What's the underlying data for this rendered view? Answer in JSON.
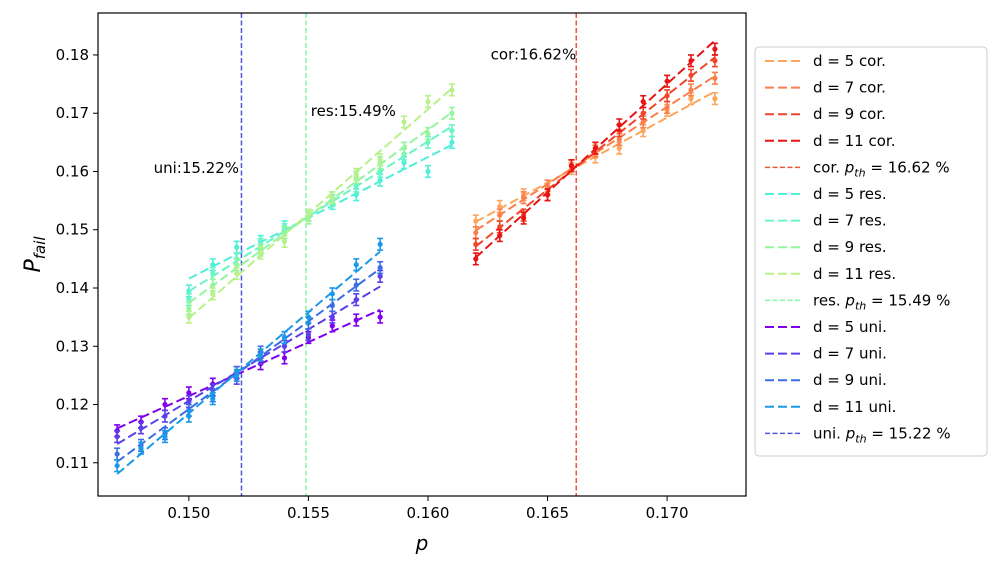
{
  "chart_data": {
    "type": "line",
    "xlabel": "p",
    "ylabel": "P",
    "ylabel_sub": "fail",
    "xlim": [
      0.1462,
      0.1733
    ],
    "ylim": [
      0.1043,
      0.1872
    ],
    "x_ticks": [
      0.15,
      0.155,
      0.16,
      0.165,
      0.17
    ],
    "x_tick_labels": [
      "0.150",
      "0.155",
      "0.160",
      "0.165",
      "0.170"
    ],
    "y_ticks": [
      0.11,
      0.12,
      0.13,
      0.14,
      0.15,
      0.16,
      0.17,
      0.18
    ],
    "y_tick_labels": [
      "0.11",
      "0.12",
      "0.13",
      "0.14",
      "0.15",
      "0.16",
      "0.17",
      "0.18"
    ],
    "grid": false,
    "legend_position": "outside-right",
    "error_bar": 0.001,
    "annotations": [
      {
        "text": "cor:16.62%",
        "x": 0.1662,
        "y": 0.1792,
        "anchor": "end"
      },
      {
        "text": "res:15.49%",
        "x": 0.1551,
        "y": 0.1695,
        "anchor": "start"
      },
      {
        "text": "uni:15.22%",
        "x": 0.1521,
        "y": 0.1597,
        "anchor": "end"
      }
    ],
    "thresholds": [
      {
        "label_prefix": "cor. ",
        "label_suffix": " = 16.62 %",
        "x": 0.1662,
        "color": "#ee5533"
      },
      {
        "label_prefix": "res. ",
        "label_suffix": " = 15.49 %",
        "x": 0.1549,
        "color": "#88f5a8"
      },
      {
        "label_prefix": "uni. ",
        "label_suffix": " = 15.22 %",
        "x": 0.1522,
        "color": "#5059dd"
      }
    ],
    "pth_symbol": "p",
    "pth_subscript": "th",
    "series": [
      {
        "name": "d = 5 cor.",
        "color": "#fca55d",
        "x": [
          0.162,
          0.163,
          0.164,
          0.165,
          0.166,
          0.167,
          0.168,
          0.169,
          0.17,
          0.171,
          0.172
        ],
        "values": [
          0.1515,
          0.154,
          0.156,
          0.157,
          0.1605,
          0.1625,
          0.164,
          0.167,
          0.1705,
          0.1725,
          0.1725
        ]
      },
      {
        "name": "d = 7 cor.",
        "color": "#fb7f4c",
        "x": [
          0.162,
          0.163,
          0.164,
          0.165,
          0.166,
          0.167,
          0.168,
          0.169,
          0.17,
          0.171,
          0.172
        ],
        "values": [
          0.1495,
          0.1525,
          0.1555,
          0.1575,
          0.161,
          0.1635,
          0.1655,
          0.1685,
          0.171,
          0.174,
          0.176
        ]
      },
      {
        "name": "d = 9 cor.",
        "color": "#f0452b",
        "x": [
          0.162,
          0.163,
          0.164,
          0.165,
          0.166,
          0.167,
          0.168,
          0.169,
          0.17,
          0.171,
          0.172
        ],
        "values": [
          0.1475,
          0.1505,
          0.1525,
          0.156,
          0.161,
          0.164,
          0.167,
          0.17,
          0.173,
          0.1765,
          0.179
        ]
      },
      {
        "name": "d = 11 cor.",
        "color": "#e81313",
        "x": [
          0.162,
          0.163,
          0.164,
          0.165,
          0.166,
          0.167,
          0.168,
          0.169,
          0.17,
          0.171,
          0.172
        ],
        "values": [
          0.145,
          0.149,
          0.152,
          0.156,
          0.161,
          0.164,
          0.168,
          0.172,
          0.1755,
          0.179,
          0.181
        ]
      },
      {
        "name": "d = 5 res.",
        "color": "#4ff0d8",
        "x": [
          0.15,
          0.151,
          0.152,
          0.153,
          0.154,
          0.155,
          0.156,
          0.157,
          0.158,
          0.159,
          0.16,
          0.161
        ],
        "values": [
          0.1395,
          0.144,
          0.147,
          0.148,
          0.1505,
          0.1525,
          0.1545,
          0.156,
          0.1585,
          0.1615,
          0.16,
          0.165
        ]
      },
      {
        "name": "d = 7 res.",
        "color": "#6af5c5",
        "x": [
          0.15,
          0.151,
          0.152,
          0.153,
          0.154,
          0.155,
          0.156,
          0.157,
          0.158,
          0.159,
          0.16,
          0.161
        ],
        "values": [
          0.138,
          0.1425,
          0.145,
          0.1475,
          0.15,
          0.1525,
          0.155,
          0.1575,
          0.16,
          0.163,
          0.165,
          0.167
        ]
      },
      {
        "name": "d = 9 res.",
        "color": "#94f59c",
        "x": [
          0.15,
          0.151,
          0.152,
          0.153,
          0.154,
          0.155,
          0.156,
          0.157,
          0.158,
          0.159,
          0.16,
          0.161
        ],
        "values": [
          0.1365,
          0.1405,
          0.144,
          0.1465,
          0.1495,
          0.152,
          0.1555,
          0.159,
          0.1615,
          0.164,
          0.1665,
          0.17
        ]
      },
      {
        "name": "d = 11 res.",
        "color": "#b8f089",
        "x": [
          0.15,
          0.151,
          0.152,
          0.153,
          0.154,
          0.155,
          0.156,
          0.157,
          0.158,
          0.159,
          0.16,
          0.161
        ],
        "values": [
          0.135,
          0.139,
          0.1425,
          0.146,
          0.148,
          0.1525,
          0.1555,
          0.1595,
          0.162,
          0.1685,
          0.172,
          0.174
        ]
      },
      {
        "name": "d = 5 uni.",
        "color": "#8000ee",
        "x": [
          0.147,
          0.148,
          0.149,
          0.15,
          0.151,
          0.152,
          0.153,
          0.154,
          0.155,
          0.156,
          0.157,
          0.158
        ],
        "values": [
          0.1155,
          0.117,
          0.12,
          0.122,
          0.1235,
          0.1255,
          0.127,
          0.128,
          0.1315,
          0.1335,
          0.1345,
          0.135
        ]
      },
      {
        "name": "d = 7 uni.",
        "color": "#5a40ea",
        "x": [
          0.147,
          0.148,
          0.149,
          0.15,
          0.151,
          0.152,
          0.153,
          0.154,
          0.155,
          0.156,
          0.157,
          0.158
        ],
        "values": [
          0.1145,
          0.116,
          0.118,
          0.1205,
          0.1225,
          0.1245,
          0.128,
          0.13,
          0.132,
          0.135,
          0.138,
          0.142
        ]
      },
      {
        "name": "d = 9 uni.",
        "color": "#3b6de6",
        "x": [
          0.147,
          0.148,
          0.149,
          0.15,
          0.151,
          0.152,
          0.153,
          0.154,
          0.155,
          0.156,
          0.157,
          0.158
        ],
        "values": [
          0.1115,
          0.113,
          0.115,
          0.119,
          0.1215,
          0.1255,
          0.129,
          0.1315,
          0.134,
          0.137,
          0.1405,
          0.1435
        ]
      },
      {
        "name": "d = 11 uni.",
        "color": "#1a9ae6",
        "x": [
          0.147,
          0.148,
          0.149,
          0.15,
          0.151,
          0.152,
          0.153,
          0.154,
          0.155,
          0.156,
          0.157,
          0.158
        ],
        "values": [
          0.1095,
          0.1125,
          0.1145,
          0.118,
          0.121,
          0.125,
          0.1285,
          0.1315,
          0.135,
          0.139,
          0.144,
          0.1475
        ]
      }
    ]
  }
}
